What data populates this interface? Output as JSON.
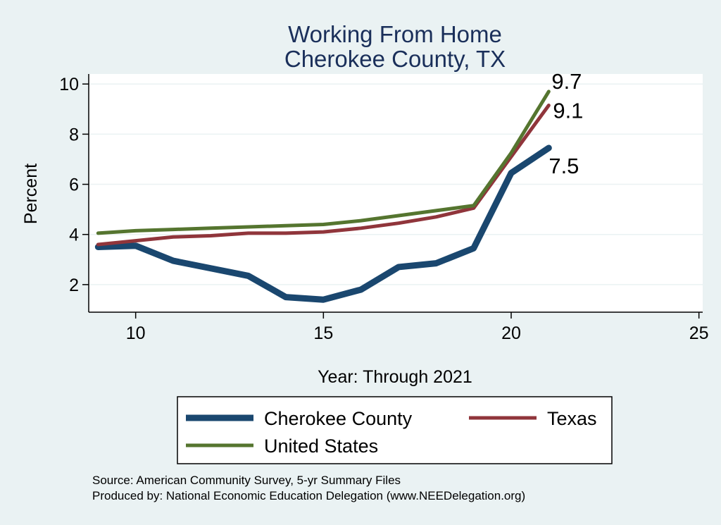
{
  "chart_data": {
    "type": "line",
    "title": "Working From Home",
    "subtitle": "Cherokee County, TX",
    "xlabel": "Year: Through 2021",
    "ylabel": "Percent",
    "xlim": [
      8.75,
      25.1
    ],
    "ylim": [
      0.9,
      10.4
    ],
    "xticks": [
      10,
      15,
      20,
      25
    ],
    "yticks": [
      2,
      4,
      6,
      8,
      10
    ],
    "x": [
      9,
      10,
      11,
      12,
      13,
      14,
      15,
      16,
      17,
      18,
      19,
      20,
      21
    ],
    "grid": true,
    "legend_position": "bottom",
    "series": [
      {
        "name": "Cherokee County",
        "color": "#1a476f",
        "values": [
          3.5,
          3.55,
          2.95,
          2.65,
          2.35,
          1.5,
          1.4,
          1.8,
          2.7,
          2.85,
          3.45,
          6.45,
          7.45
        ],
        "end_label": "7.5"
      },
      {
        "name": "Texas",
        "color": "#90353b",
        "values": [
          3.6,
          3.75,
          3.9,
          3.95,
          4.05,
          4.05,
          4.1,
          4.25,
          4.45,
          4.7,
          5.05,
          7.1,
          9.15
        ],
        "end_label": "9.1"
      },
      {
        "name": "United States",
        "color": "#55752f",
        "values": [
          4.05,
          4.15,
          4.2,
          4.25,
          4.3,
          4.35,
          4.4,
          4.55,
          4.75,
          4.95,
          5.15,
          7.25,
          9.7
        ],
        "end_label": "9.7"
      }
    ],
    "notes": [
      "Source: American Community Survey, 5-yr Summary Files",
      "Produced by: National Economic Education Delegation (www.NEEDelegation.org)"
    ]
  }
}
